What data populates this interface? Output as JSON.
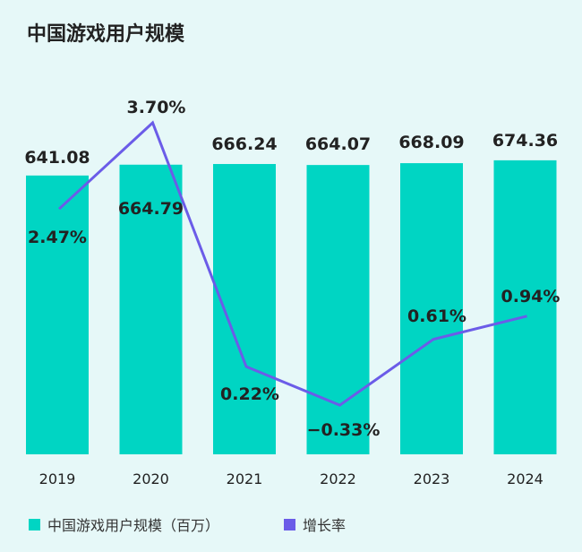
{
  "chart_data": {
    "type": "bar+line",
    "title": "中国游戏用户规模",
    "categories": [
      "2019",
      "2020",
      "2021",
      "2022",
      "2023",
      "2024"
    ],
    "series": [
      {
        "name": "中国游戏用户规模（百万）",
        "type": "bar",
        "values": [
          641.08,
          664.79,
          666.24,
          664.07,
          668.09,
          674.36
        ],
        "labels": [
          "641.08",
          "664.79",
          "666.24",
          "664.07",
          "668.09",
          "674.36"
        ],
        "color": "#00d5c3"
      },
      {
        "name": "增长率",
        "type": "line",
        "values": [
          2.47,
          3.7,
          0.22,
          -0.33,
          0.61,
          0.94
        ],
        "labels": [
          "2.47%",
          "3.70%",
          "0.22%",
          "−0.33%",
          "0.61%",
          "0.94%"
        ],
        "color": "#6b5ce8"
      }
    ],
    "grid": false,
    "legend": "bottom-left"
  }
}
